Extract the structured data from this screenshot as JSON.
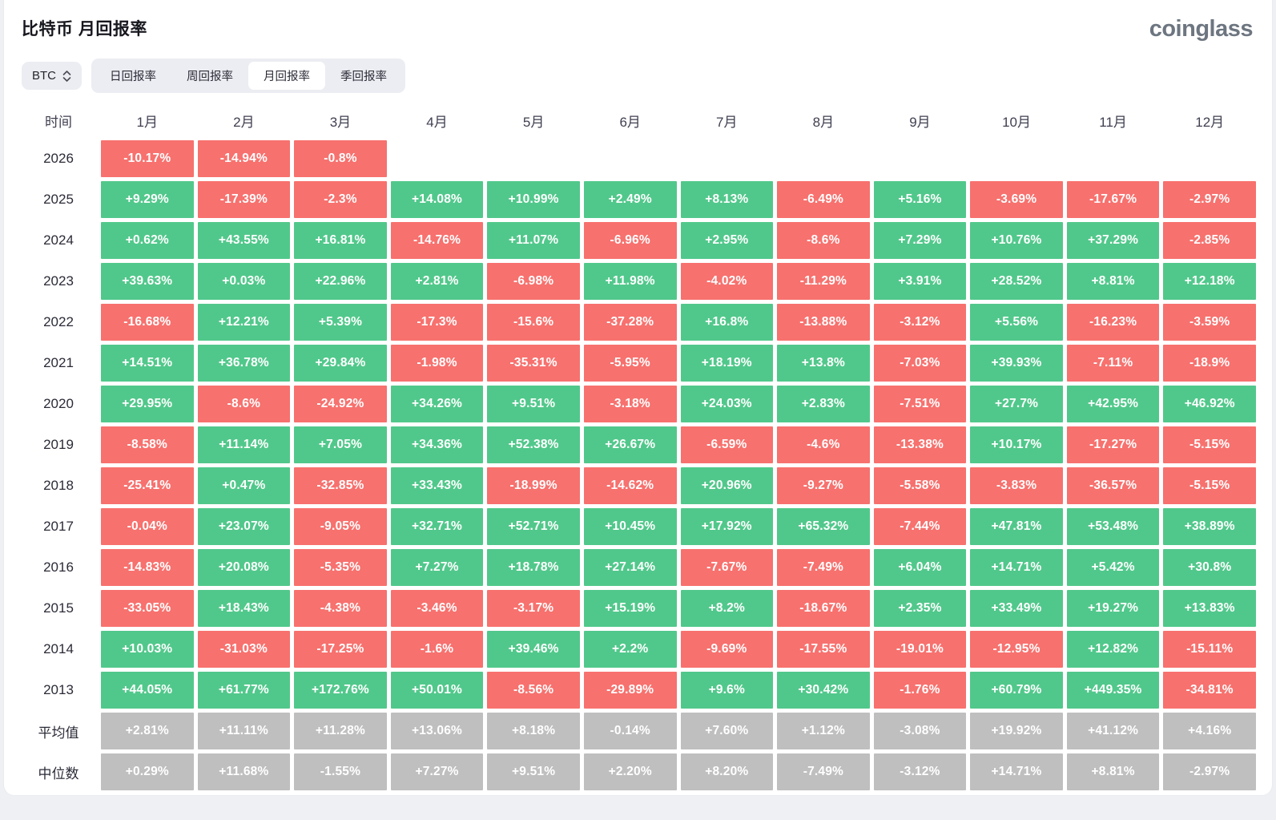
{
  "header": {
    "title": "比特币 月回报率",
    "logo": "coinglass"
  },
  "controls": {
    "coin_selector": "BTC",
    "tabs": [
      {
        "label": "日回报率",
        "active": false
      },
      {
        "label": "周回报率",
        "active": false
      },
      {
        "label": "月回报率",
        "active": true
      },
      {
        "label": "季回报率",
        "active": false
      }
    ]
  },
  "colors": {
    "positive": "#51c88b",
    "negative": "#f7716e",
    "neutral": "#bfbfbf"
  },
  "chart_data": {
    "type": "heatmap",
    "title": "比特币 月回报率",
    "columns": [
      "时间",
      "1月",
      "2月",
      "3月",
      "4月",
      "5月",
      "6月",
      "7月",
      "8月",
      "9月",
      "10月",
      "11月",
      "12月"
    ],
    "rows": [
      {
        "label": "2026",
        "stat": false,
        "values": [
          "-10.17%",
          "-14.94%",
          "-0.8%",
          "",
          "",
          "",
          "",
          "",
          "",
          "",
          "",
          ""
        ]
      },
      {
        "label": "2025",
        "stat": false,
        "values": [
          "+9.29%",
          "-17.39%",
          "-2.3%",
          "+14.08%",
          "+10.99%",
          "+2.49%",
          "+8.13%",
          "-6.49%",
          "+5.16%",
          "-3.69%",
          "-17.67%",
          "-2.97%"
        ]
      },
      {
        "label": "2024",
        "stat": false,
        "values": [
          "+0.62%",
          "+43.55%",
          "+16.81%",
          "-14.76%",
          "+11.07%",
          "-6.96%",
          "+2.95%",
          "-8.6%",
          "+7.29%",
          "+10.76%",
          "+37.29%",
          "-2.85%"
        ]
      },
      {
        "label": "2023",
        "stat": false,
        "values": [
          "+39.63%",
          "+0.03%",
          "+22.96%",
          "+2.81%",
          "-6.98%",
          "+11.98%",
          "-4.02%",
          "-11.29%",
          "+3.91%",
          "+28.52%",
          "+8.81%",
          "+12.18%"
        ]
      },
      {
        "label": "2022",
        "stat": false,
        "values": [
          "-16.68%",
          "+12.21%",
          "+5.39%",
          "-17.3%",
          "-15.6%",
          "-37.28%",
          "+16.8%",
          "-13.88%",
          "-3.12%",
          "+5.56%",
          "-16.23%",
          "-3.59%"
        ]
      },
      {
        "label": "2021",
        "stat": false,
        "values": [
          "+14.51%",
          "+36.78%",
          "+29.84%",
          "-1.98%",
          "-35.31%",
          "-5.95%",
          "+18.19%",
          "+13.8%",
          "-7.03%",
          "+39.93%",
          "-7.11%",
          "-18.9%"
        ]
      },
      {
        "label": "2020",
        "stat": false,
        "values": [
          "+29.95%",
          "-8.6%",
          "-24.92%",
          "+34.26%",
          "+9.51%",
          "-3.18%",
          "+24.03%",
          "+2.83%",
          "-7.51%",
          "+27.7%",
          "+42.95%",
          "+46.92%"
        ]
      },
      {
        "label": "2019",
        "stat": false,
        "values": [
          "-8.58%",
          "+11.14%",
          "+7.05%",
          "+34.36%",
          "+52.38%",
          "+26.67%",
          "-6.59%",
          "-4.6%",
          "-13.38%",
          "+10.17%",
          "-17.27%",
          "-5.15%"
        ]
      },
      {
        "label": "2018",
        "stat": false,
        "values": [
          "-25.41%",
          "+0.47%",
          "-32.85%",
          "+33.43%",
          "-18.99%",
          "-14.62%",
          "+20.96%",
          "-9.27%",
          "-5.58%",
          "-3.83%",
          "-36.57%",
          "-5.15%"
        ]
      },
      {
        "label": "2017",
        "stat": false,
        "values": [
          "-0.04%",
          "+23.07%",
          "-9.05%",
          "+32.71%",
          "+52.71%",
          "+10.45%",
          "+17.92%",
          "+65.32%",
          "-7.44%",
          "+47.81%",
          "+53.48%",
          "+38.89%"
        ]
      },
      {
        "label": "2016",
        "stat": false,
        "values": [
          "-14.83%",
          "+20.08%",
          "-5.35%",
          "+7.27%",
          "+18.78%",
          "+27.14%",
          "-7.67%",
          "-7.49%",
          "+6.04%",
          "+14.71%",
          "+5.42%",
          "+30.8%"
        ]
      },
      {
        "label": "2015",
        "stat": false,
        "values": [
          "-33.05%",
          "+18.43%",
          "-4.38%",
          "-3.46%",
          "-3.17%",
          "+15.19%",
          "+8.2%",
          "-18.67%",
          "+2.35%",
          "+33.49%",
          "+19.27%",
          "+13.83%"
        ]
      },
      {
        "label": "2014",
        "stat": false,
        "values": [
          "+10.03%",
          "-31.03%",
          "-17.25%",
          "-1.6%",
          "+39.46%",
          "+2.2%",
          "-9.69%",
          "-17.55%",
          "-19.01%",
          "-12.95%",
          "+12.82%",
          "-15.11%"
        ]
      },
      {
        "label": "2013",
        "stat": false,
        "values": [
          "+44.05%",
          "+61.77%",
          "+172.76%",
          "+50.01%",
          "-8.56%",
          "-29.89%",
          "+9.6%",
          "+30.42%",
          "-1.76%",
          "+60.79%",
          "+449.35%",
          "-34.81%"
        ]
      },
      {
        "label": "平均值",
        "stat": true,
        "values": [
          "+2.81%",
          "+11.11%",
          "+11.28%",
          "+13.06%",
          "+8.18%",
          "-0.14%",
          "+7.60%",
          "+1.12%",
          "-3.08%",
          "+19.92%",
          "+41.12%",
          "+4.16%"
        ]
      },
      {
        "label": "中位数",
        "stat": true,
        "values": [
          "+0.29%",
          "+11.68%",
          "-1.55%",
          "+7.27%",
          "+9.51%",
          "+2.20%",
          "+8.20%",
          "-7.49%",
          "-3.12%",
          "+14.71%",
          "+8.81%",
          "-2.97%"
        ]
      }
    ]
  }
}
